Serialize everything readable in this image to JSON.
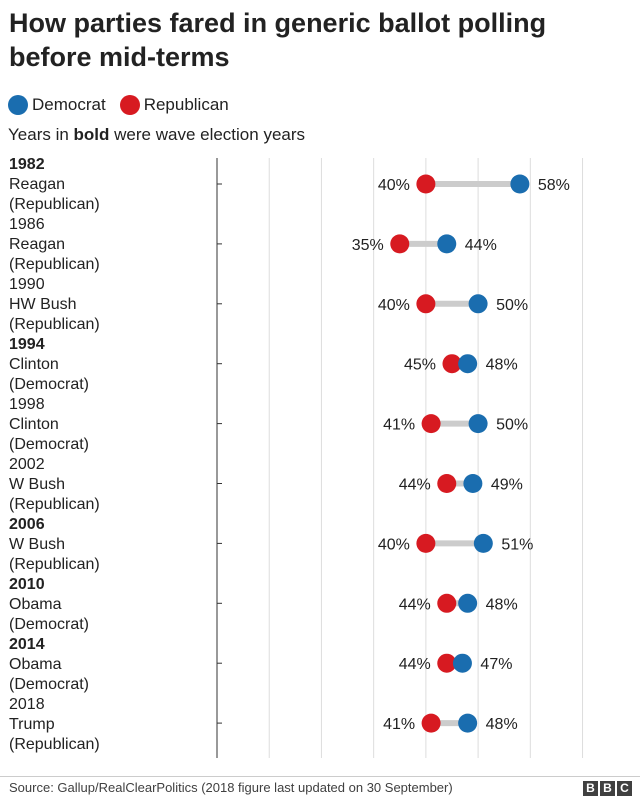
{
  "title": "How parties fared in generic ballot polling before mid-terms",
  "legend": [
    {
      "label": "Democrat",
      "color": "#1a6daf"
    },
    {
      "label": "Republican",
      "color": "#d71a21"
    }
  ],
  "note": {
    "prefix": "Years in ",
    "bold": "bold",
    "suffix": " were wave election years"
  },
  "rows": [
    {
      "year": "1982",
      "bold": true,
      "president": "Reagan",
      "party": "(Republican)"
    },
    {
      "year": "1986",
      "bold": false,
      "president": "Reagan",
      "party": "(Republican)"
    },
    {
      "year": "1990",
      "bold": false,
      "president": "HW Bush",
      "party": "(Republican)"
    },
    {
      "year": "1994",
      "bold": true,
      "president": "Clinton",
      "party": "(Democrat)"
    },
    {
      "year": "1998",
      "bold": false,
      "president": "Clinton",
      "party": "(Democrat)"
    },
    {
      "year": "2002",
      "bold": false,
      "president": "W Bush",
      "party": "(Republican)"
    },
    {
      "year": "2006",
      "bold": true,
      "president": "W Bush",
      "party": "(Republican)"
    },
    {
      "year": "2010",
      "bold": true,
      "president": "Obama",
      "party": "(Democrat)"
    },
    {
      "year": "2014",
      "bold": true,
      "president": "Obama",
      "party": "(Democrat)"
    },
    {
      "year": "2018",
      "bold": false,
      "president": "Trump",
      "party": "(Republican)"
    }
  ],
  "chart_data": {
    "type": "dumbbell",
    "categories": [
      "1982",
      "1986",
      "1990",
      "1994",
      "1998",
      "2002",
      "2006",
      "2010",
      "2014",
      "2018"
    ],
    "series": [
      {
        "name": "Democrat",
        "color": "#1a6daf",
        "values": [
          58,
          44,
          50,
          48,
          50,
          49,
          51,
          48,
          47,
          48
        ]
      },
      {
        "name": "Republican",
        "color": "#d71a21",
        "values": [
          40,
          35,
          40,
          45,
          41,
          44,
          40,
          44,
          44,
          41
        ]
      }
    ],
    "value_suffix": "%",
    "xlim": [
      0,
      70
    ],
    "gridlines": [
      10,
      20,
      30,
      40,
      50,
      60,
      70
    ],
    "grid": true
  },
  "source": "Source: Gallup/RealClearPolitics (2018 figure last updated on 30 September)",
  "logo": [
    "B",
    "B",
    "C"
  ]
}
